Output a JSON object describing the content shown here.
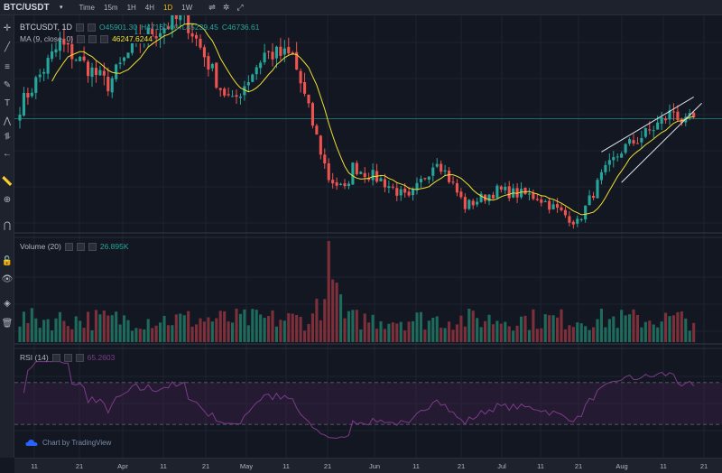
{
  "header": {
    "symbol": "BTC/USDT",
    "caret_icon": "caret-down-icon",
    "timeframes": [
      {
        "label": "Time",
        "active": false
      },
      {
        "label": "15m",
        "active": false
      },
      {
        "label": "1H",
        "active": false
      },
      {
        "label": "4H",
        "active": false
      },
      {
        "label": "1D",
        "active": true
      },
      {
        "label": "1W",
        "active": false
      }
    ],
    "icons": [
      "indicator-icon",
      "chart-settings-icon",
      "fullscreen-icon"
    ]
  },
  "drawing_tools": [
    "crosshair-icon",
    "trend-line-icon",
    "fib-retracement-icon",
    "brush-icon",
    "text-icon",
    "pattern-icon",
    "prediction-icon",
    "back-arrow-icon",
    "ruler-icon",
    "zoom-in-icon",
    "magnet-icon",
    "lock-icon",
    "eye-icon",
    "layers-icon",
    "trash-icon"
  ],
  "legends": {
    "ohlc": {
      "name": "BTCUSDT, 1D",
      "open": "O45901.30",
      "high": "H47160.00",
      "low": "L45239.45",
      "close": "C46736.61"
    },
    "ma": {
      "label": "MA (9, close, 0)",
      "value": "46247.6244"
    },
    "volume": {
      "label": "Volume (20)",
      "value": "26.895K"
    },
    "rsi": {
      "label": "RSI (14)",
      "value": "65.2603"
    }
  },
  "branding": {
    "text": "Chart by TradingView",
    "logo": "tradingview-cloud-logo"
  },
  "x_axis_labels": [
    "11",
    "21",
    "Apr",
    "11",
    "21",
    "May",
    "11",
    "21",
    "Jun",
    "11",
    "21",
    "Jul",
    "11",
    "21",
    "Aug",
    "11",
    "21"
  ],
  "colors": {
    "up": "#26a69a",
    "down": "#ef5350",
    "ma": "#f0e130",
    "rsi": "#7e3b8a",
    "bg": "#131722",
    "active_tf": "#f0b90b"
  },
  "chart_data": [
    {
      "type": "candlestick",
      "title": "BTCUSDT, 1D",
      "x_range": [
        "2021-03-03",
        "2021-08-21"
      ],
      "y_range": [
        27500,
        62500
      ],
      "horizontal_line": 46500,
      "keypoints": [
        {
          "date": "2021-03-03",
          "close": 48500
        },
        {
          "date": "2021-03-13",
          "close": 58500
        },
        {
          "date": "2021-03-25",
          "close": 52000
        },
        {
          "date": "2021-04-01",
          "close": 58800
        },
        {
          "date": "2021-04-13",
          "close": 63000
        },
        {
          "date": "2021-04-22",
          "close": 51500
        },
        {
          "date": "2021-04-25",
          "close": 49000
        },
        {
          "date": "2021-05-03",
          "close": 57000
        },
        {
          "date": "2021-05-10",
          "close": 56500
        },
        {
          "date": "2021-05-13",
          "close": 50000
        },
        {
          "date": "2021-05-19",
          "close": 37000
        },
        {
          "date": "2021-05-23",
          "close": 35000
        },
        {
          "date": "2021-05-25",
          "close": 38800
        },
        {
          "date": "2021-06-01",
          "close": 36700
        },
        {
          "date": "2021-06-08",
          "close": 33500
        },
        {
          "date": "2021-06-15",
          "close": 40200
        },
        {
          "date": "2021-06-22",
          "close": 32500
        },
        {
          "date": "2021-06-30",
          "close": 35000
        },
        {
          "date": "2021-07-10",
          "close": 34000
        },
        {
          "date": "2021-07-20",
          "close": 29800
        },
        {
          "date": "2021-07-26",
          "close": 37200
        },
        {
          "date": "2021-07-31",
          "close": 41500
        },
        {
          "date": "2021-08-07",
          "close": 44500
        },
        {
          "date": "2021-08-13",
          "close": 47800
        },
        {
          "date": "2021-08-16",
          "close": 45600
        },
        {
          "date": "2021-08-18",
          "close": 46736.61
        }
      ],
      "overlays": [
        {
          "name": "MA (9, close, 0)",
          "color": "#f0e130"
        }
      ],
      "trend_lines": [
        {
          "from": {
            "date": "2021-07-26",
            "price": 41200
          },
          "to": {
            "date": "2021-08-18",
            "price": 50000
          }
        },
        {
          "from": {
            "date": "2021-07-31",
            "price": 36300
          },
          "to": {
            "date": "2021-08-20",
            "price": 49000
          }
        }
      ]
    },
    {
      "type": "bar",
      "title": "Volume (20)",
      "last_value": "26.895K",
      "relative_levels": {
        "typical": 0.25,
        "peak_date": "2021-05-19",
        "peak": 1.0,
        "second_peak_date": "2021-05-20",
        "second_peak": 0.62
      }
    },
    {
      "type": "line",
      "title": "RSI (14)",
      "y_range": [
        0,
        100
      ],
      "bands": [
        30,
        70
      ],
      "last_value": 65.2603
    }
  ]
}
